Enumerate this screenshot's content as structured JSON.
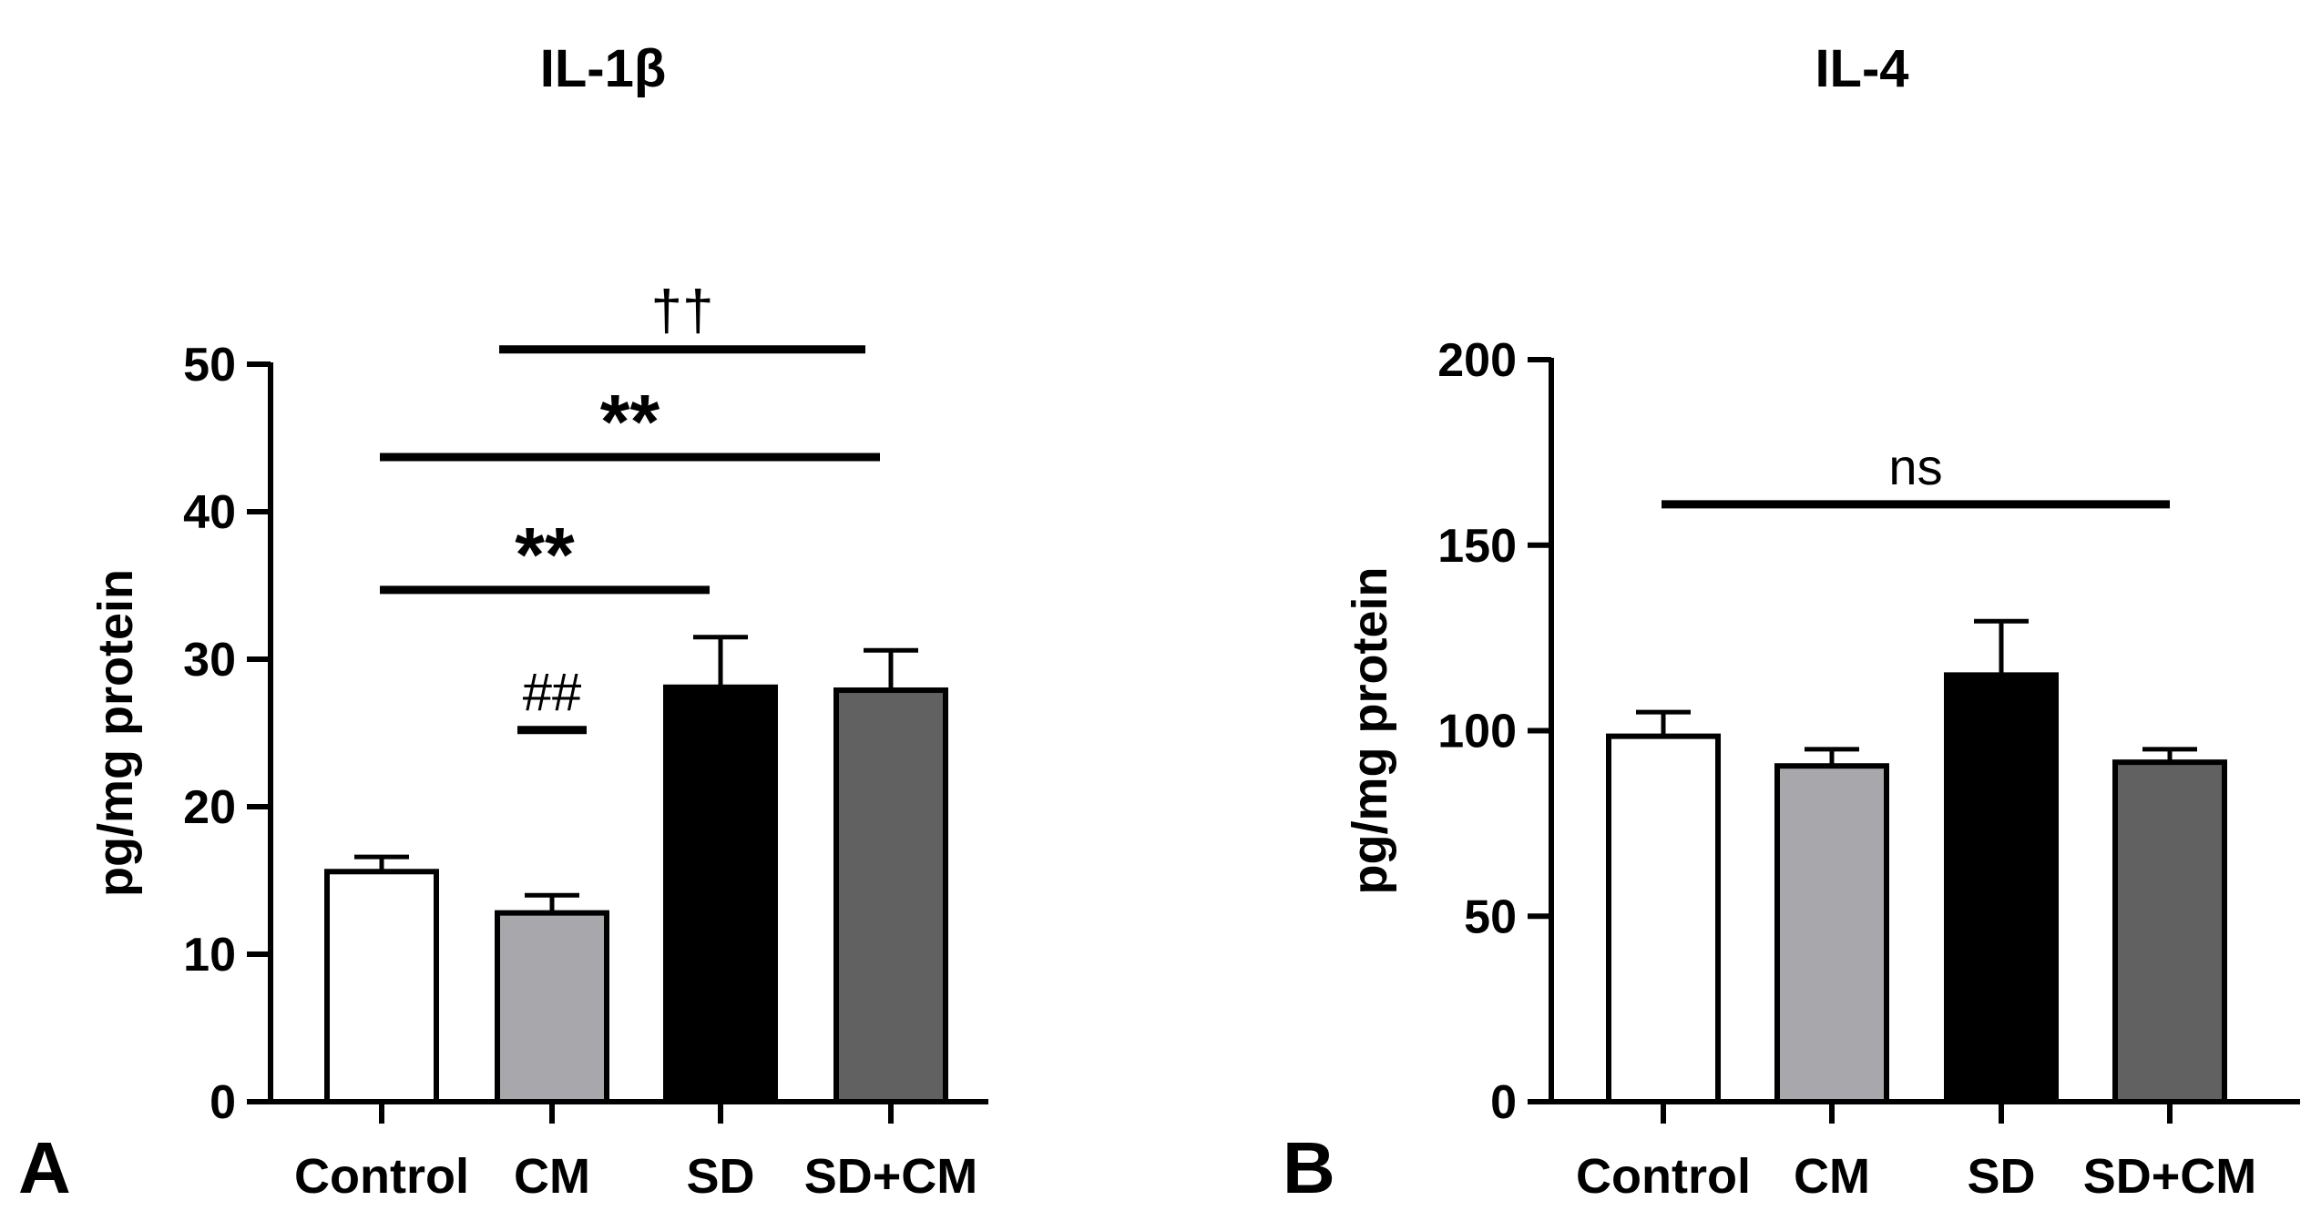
{
  "chart_data": [
    {
      "type": "bar",
      "panel_label": "A",
      "title": "IL-1β",
      "ylabel": "pg/mg protein",
      "xlabel": "",
      "ylim": [
        0,
        50
      ],
      "yticks": [
        0,
        10,
        20,
        30,
        40,
        50
      ],
      "categories": [
        "Control",
        "CM",
        "SD",
        "SD+CM"
      ],
      "values": [
        15.6,
        12.8,
        28.1,
        27.9
      ],
      "errors": [
        1.0,
        1.2,
        3.4,
        2.7
      ],
      "bar_colors": [
        "#ffffff",
        "#a8a8ac",
        "#000000",
        "#616161"
      ],
      "annotations": [
        {
          "label": "††",
          "from": "CM",
          "to": "SD+CM",
          "level": 51
        },
        {
          "label": "**",
          "from": "Control",
          "to": "SD+CM",
          "level": 43.7
        },
        {
          "label": "**",
          "from": "Control",
          "to": "SD",
          "level": 34.7
        },
        {
          "label": "##",
          "from": "CM",
          "to": "CM",
          "level": 25.2
        }
      ]
    },
    {
      "type": "bar",
      "panel_label": "B",
      "title": "IL-4",
      "ylabel": "pg/mg protein",
      "xlabel": "",
      "ylim": [
        0,
        200
      ],
      "yticks": [
        0,
        50,
        100,
        150,
        200
      ],
      "categories": [
        "Control",
        "CM",
        "SD",
        "SD+CM"
      ],
      "values": [
        98.5,
        90.5,
        115,
        91.5
      ],
      "errors": [
        6.5,
        4.5,
        14.5,
        3.5
      ],
      "bar_colors": [
        "#ffffff",
        "#a8a8ac",
        "#000000",
        "#616161"
      ],
      "annotations": [
        {
          "label": "ns",
          "from": "Control",
          "to": "SD+CM",
          "level": 161
        }
      ]
    }
  ]
}
